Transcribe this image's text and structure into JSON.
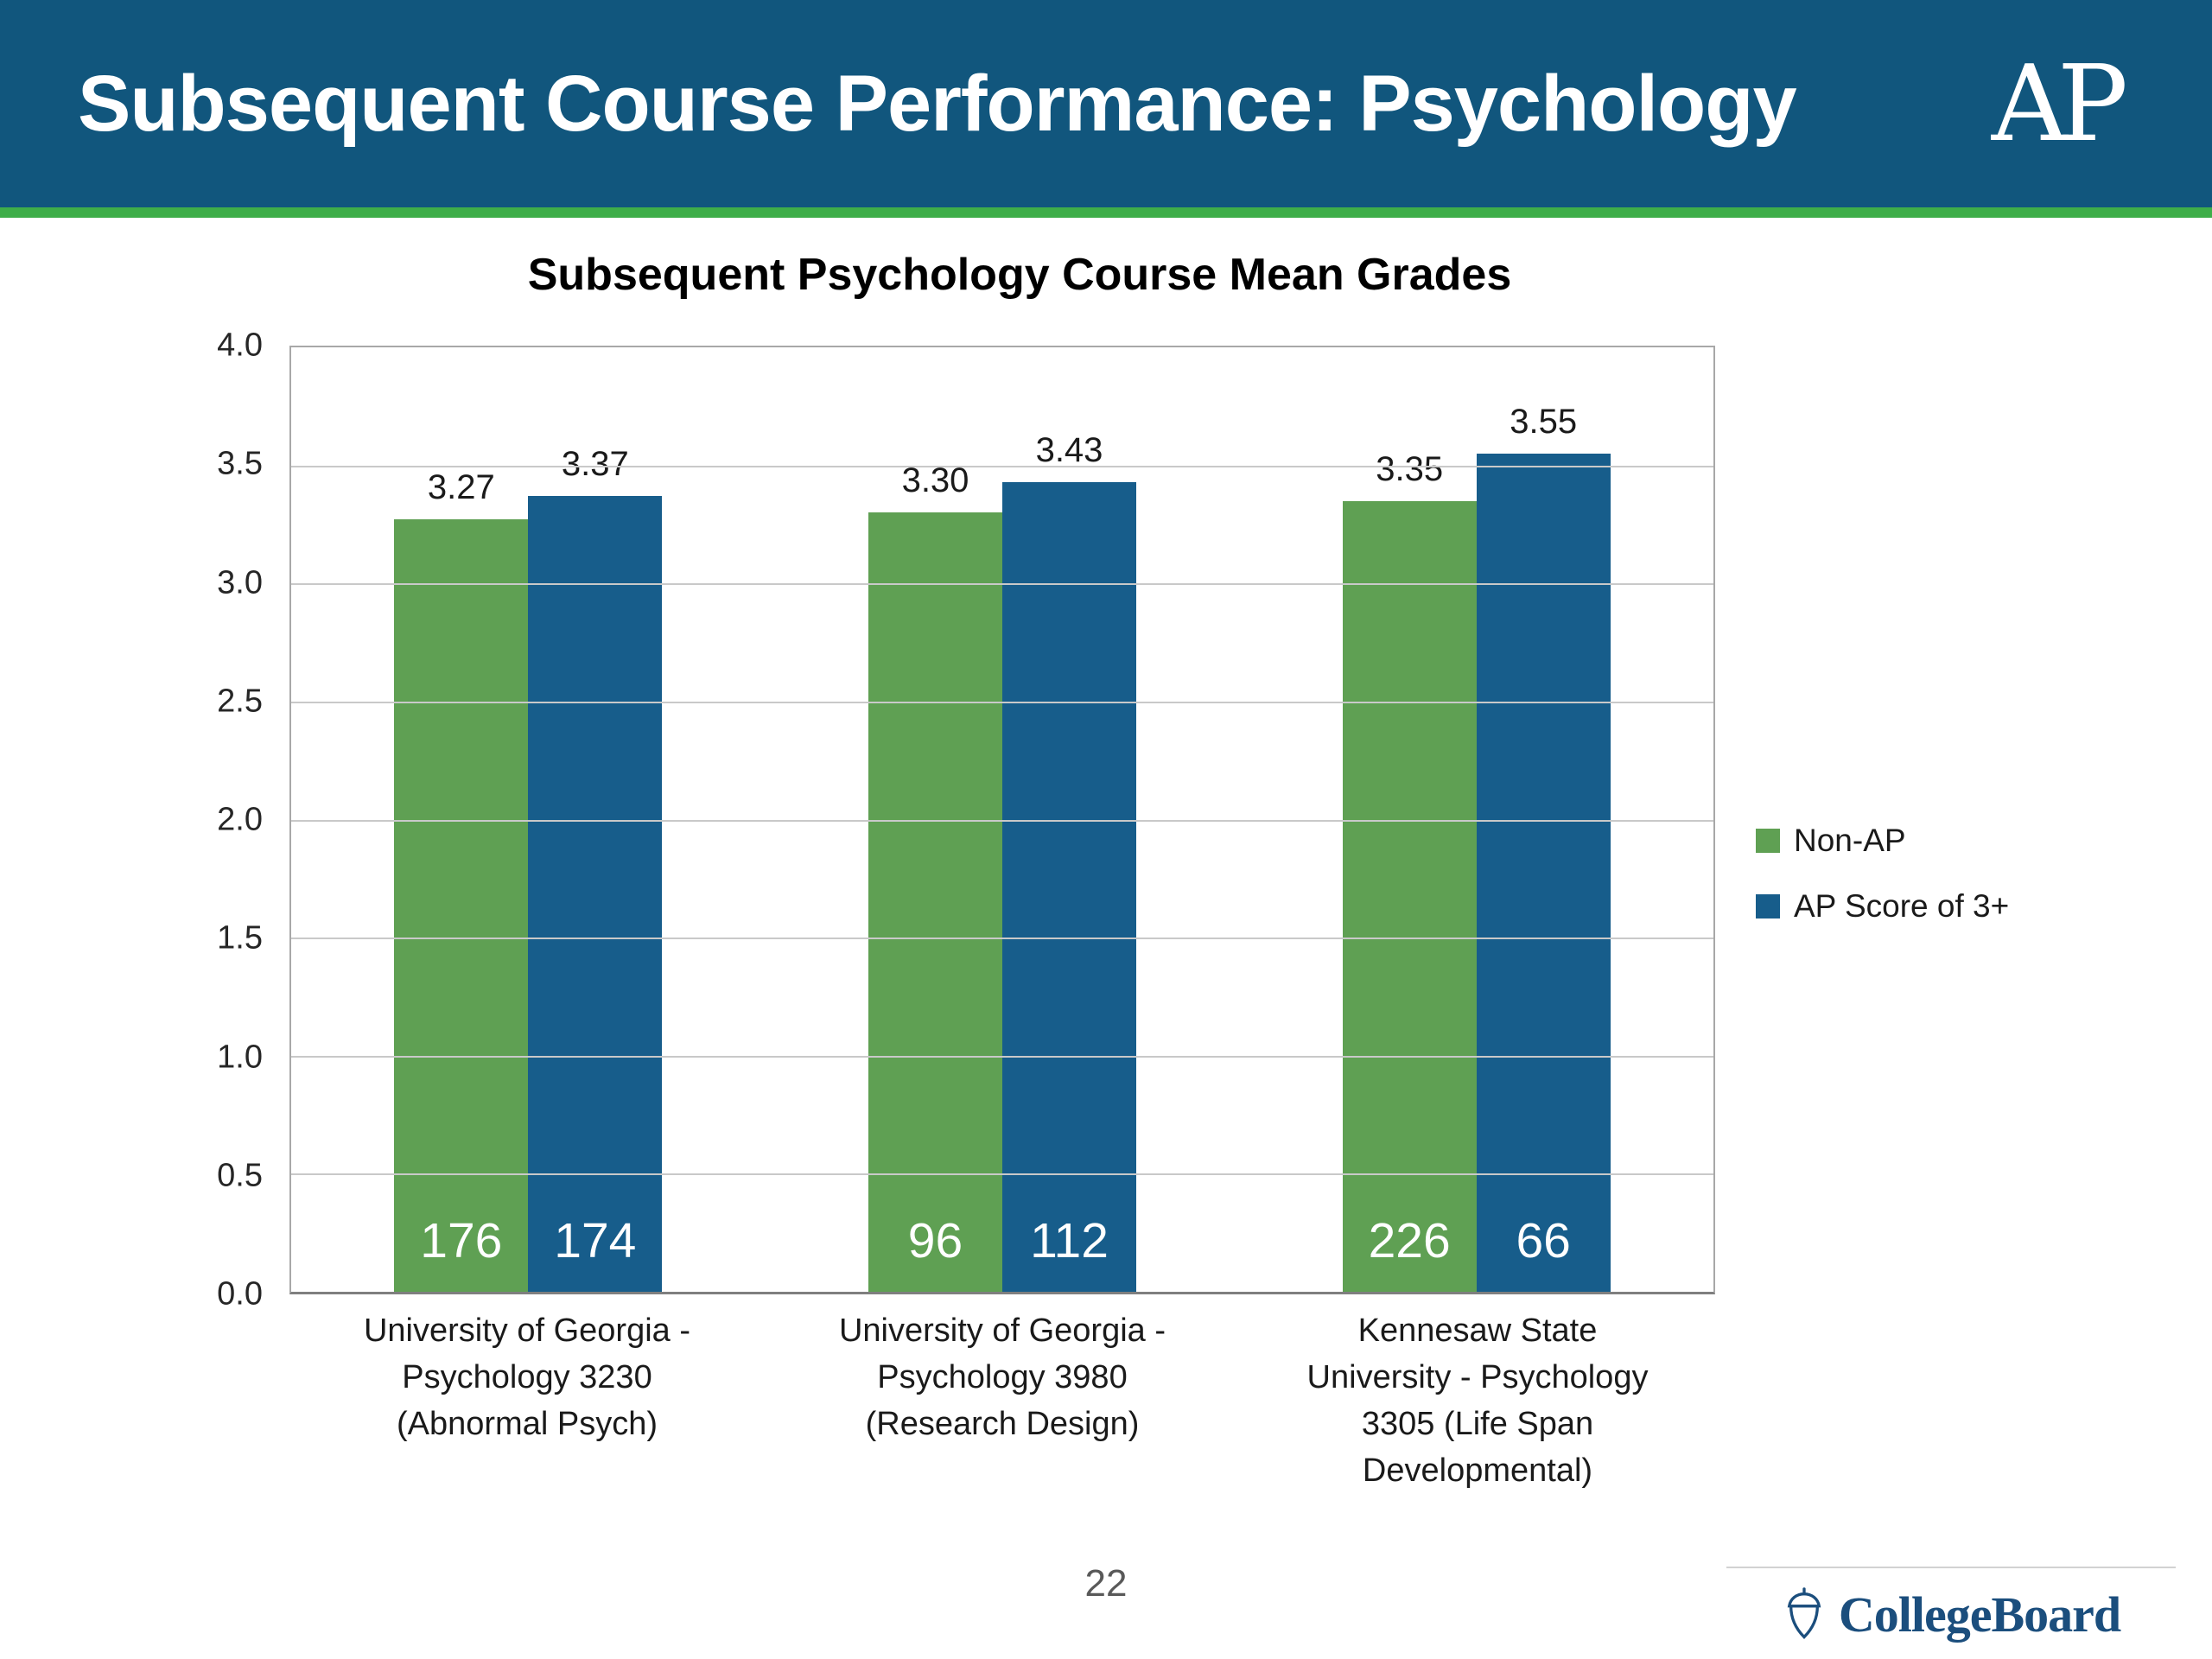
{
  "header": {
    "title": "Subsequent Course Performance: Psychology",
    "ap_logo": "AP"
  },
  "chart_data": {
    "type": "bar",
    "title": "Subsequent Psychology Course Mean Grades",
    "categories": [
      "University of Georgia - Psychology 3230 (Abnormal Psych)",
      "University of Georgia - Psychology 3980 (Research Design)",
      "Kennesaw State University - Psychology 3305 (Life Span Developmental)"
    ],
    "series": [
      {
        "name": "Non-AP",
        "color": "#5fa053",
        "values": [
          3.27,
          3.3,
          3.35
        ],
        "counts": [
          176,
          96,
          226
        ]
      },
      {
        "name": "AP Score of 3+",
        "color": "#175d8b",
        "values": [
          3.37,
          3.43,
          3.55
        ],
        "counts": [
          174,
          112,
          66
        ]
      }
    ],
    "ylim": [
      0,
      4
    ],
    "ytick_step": 0.5,
    "grid": true,
    "legend_position": "right"
  },
  "footer": {
    "page_number": "22",
    "brand": "CollegeBoard"
  }
}
